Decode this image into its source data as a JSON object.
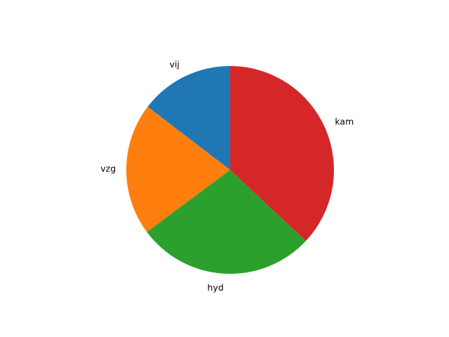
{
  "chart_data": {
    "type": "pie",
    "start_angle_deg": 90,
    "direction": "counterclockwise",
    "slices": [
      {
        "label": "vij",
        "value": 14.6,
        "color": "#1f77b4"
      },
      {
        "label": "vzg",
        "value": 20.6,
        "color": "#ff7f0e"
      },
      {
        "label": "hyd",
        "value": 27.8,
        "color": "#2ca02c"
      },
      {
        "label": "kam",
        "value": 37.0,
        "color": "#d62728"
      }
    ]
  }
}
